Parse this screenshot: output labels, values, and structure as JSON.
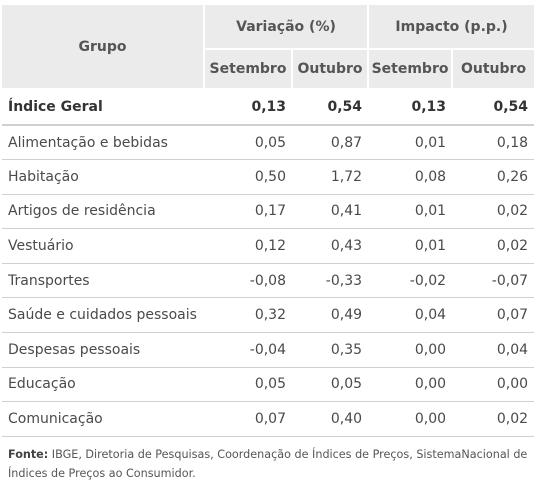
{
  "table": {
    "header_group": "Grupo",
    "header_variacao": "Variação (%)",
    "header_impacto": "Impacto (p.p.)",
    "sub_headers": [
      "Setembro",
      "Outubro",
      "Setembro",
      "Outubro"
    ],
    "rows": [
      {
        "grupo": "Índice Geral",
        "var_set": "0,13",
        "var_out": "0,54",
        "imp_set": "0,13",
        "imp_out": "0,54"
      },
      {
        "grupo": "Alimentação e bebidas",
        "var_set": "0,05",
        "var_out": "0,87",
        "imp_set": "0,01",
        "imp_out": "0,18"
      },
      {
        "grupo": "Habitação",
        "var_set": "0,50",
        "var_out": "1,72",
        "imp_set": "0,08",
        "imp_out": "0,26"
      },
      {
        "grupo": "Artigos de residência",
        "var_set": "0,17",
        "var_out": "0,41",
        "imp_set": "0,01",
        "imp_out": "0,02"
      },
      {
        "grupo": "Vestuário",
        "var_set": "0,12",
        "var_out": "0,43",
        "imp_set": "0,01",
        "imp_out": "0,02"
      },
      {
        "grupo": "Transportes",
        "var_set": "-0,08",
        "var_out": "-0,33",
        "imp_set": "-0,02",
        "imp_out": "-0,07"
      },
      {
        "grupo": "Saúde e cuidados pessoais",
        "var_set": "0,32",
        "var_out": "0,49",
        "imp_set": "0,04",
        "imp_out": "0,07"
      },
      {
        "grupo": "Despesas pessoais",
        "var_set": "-0,04",
        "var_out": "0,35",
        "imp_set": "0,00",
        "imp_out": "0,04"
      },
      {
        "grupo": "Educação",
        "var_set": "0,05",
        "var_out": "0,05",
        "imp_set": "0,00",
        "imp_out": "0,00"
      },
      {
        "grupo": "Comunicação",
        "var_set": "0,07",
        "var_out": "0,40",
        "imp_set": "0,00",
        "imp_out": "0,02"
      }
    ]
  },
  "source": {
    "label": "Fonte:",
    "text": " IBGE, Diretoria de Pesquisas, Coordenação de Índices de Preços, SistemaNacional de Índices de Preços ao Consumidor."
  }
}
